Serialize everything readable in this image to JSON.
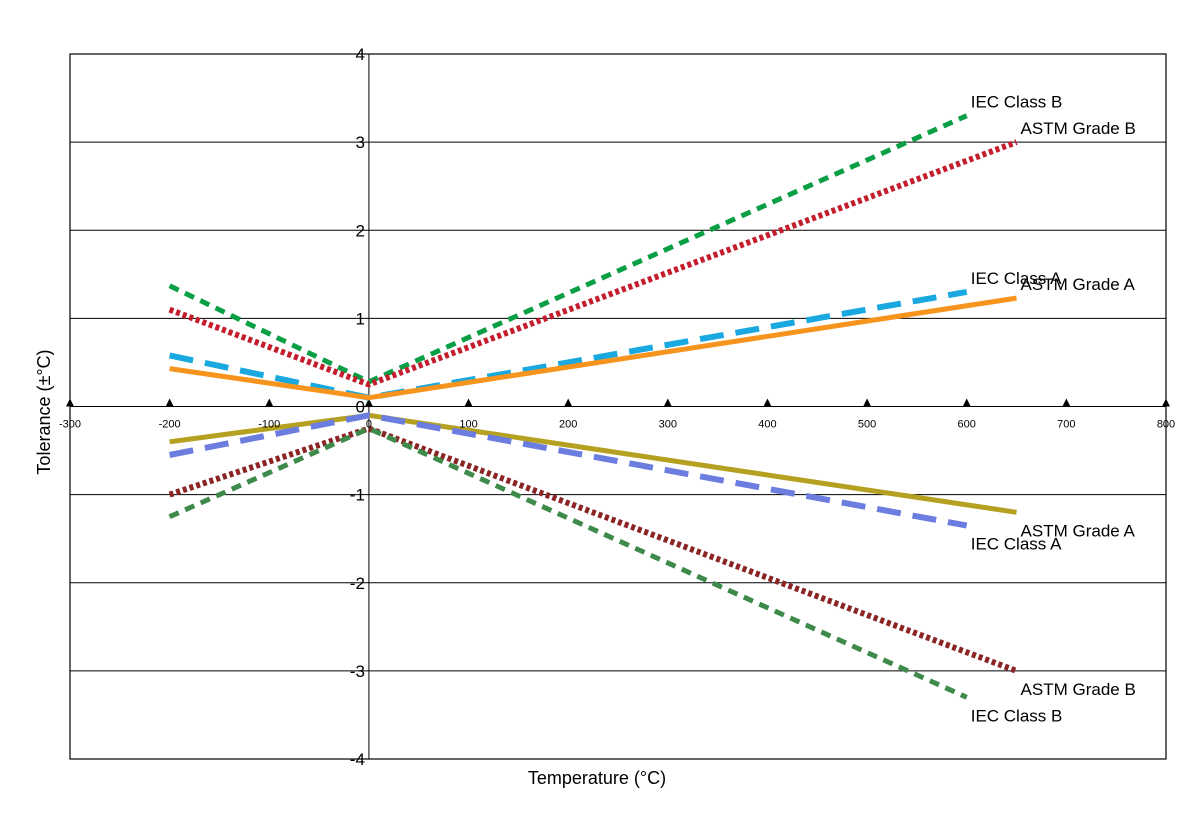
{
  "chart_data": {
    "type": "line",
    "title": "",
    "xlabel": "Temperature (°C)",
    "ylabel": "Tolerance (±°C)",
    "xlim": [
      -300,
      800
    ],
    "ylim": [
      -4,
      4
    ],
    "x_ticks": [
      "-300",
      "-200",
      "-100",
      "0",
      "100",
      "200",
      "300",
      "400",
      "500",
      "600",
      "700",
      "800"
    ],
    "y_ticks": [
      "4",
      "3",
      "2",
      "1",
      "0",
      "-1",
      "-2",
      "-3",
      "-4"
    ],
    "grid": "horizontal",
    "legend": "none",
    "series": [
      {
        "name": "IEC Class B",
        "color": "#0a9e45",
        "style": "dashed",
        "points": [
          [
            -200,
            1.37
          ],
          [
            0,
            0.28
          ],
          [
            600,
            3.3
          ]
        ]
      },
      {
        "name": "ASTM Grade B",
        "color": "#c41e2e",
        "style": "dotted",
        "points": [
          [
            -200,
            1.1
          ],
          [
            0,
            0.25
          ],
          [
            650,
            3.0
          ]
        ]
      },
      {
        "name": "IEC Class A",
        "color": "#1aa8e0",
        "style": "long-dashed",
        "points": [
          [
            -200,
            0.58
          ],
          [
            0,
            0.1
          ],
          [
            600,
            1.3
          ]
        ]
      },
      {
        "name": "ASTM Grade A",
        "color": "#f7941d",
        "style": "solid",
        "points": [
          [
            -200,
            0.43
          ],
          [
            0,
            0.1
          ],
          [
            650,
            1.23
          ]
        ]
      },
      {
        "name": "ASTM Grade A",
        "color": "#b5a020",
        "style": "solid",
        "points": [
          [
            -200,
            -0.4
          ],
          [
            0,
            -0.1
          ],
          [
            650,
            -1.2
          ]
        ]
      },
      {
        "name": "IEC Class A",
        "color": "#6c7de0",
        "style": "long-dashed",
        "points": [
          [
            -200,
            -0.55
          ],
          [
            0,
            -0.1
          ],
          [
            600,
            -1.35
          ]
        ]
      },
      {
        "name": "ASTM Grade B",
        "color": "#8b2525",
        "style": "dotted",
        "points": [
          [
            -200,
            -1.0
          ],
          [
            0,
            -0.25
          ],
          [
            650,
            -3.0
          ]
        ]
      },
      {
        "name": "IEC Class B",
        "color": "#3e8a4a",
        "style": "dashed",
        "points": [
          [
            -200,
            -1.25
          ],
          [
            0,
            -0.25
          ],
          [
            600,
            -3.3
          ]
        ]
      }
    ]
  }
}
